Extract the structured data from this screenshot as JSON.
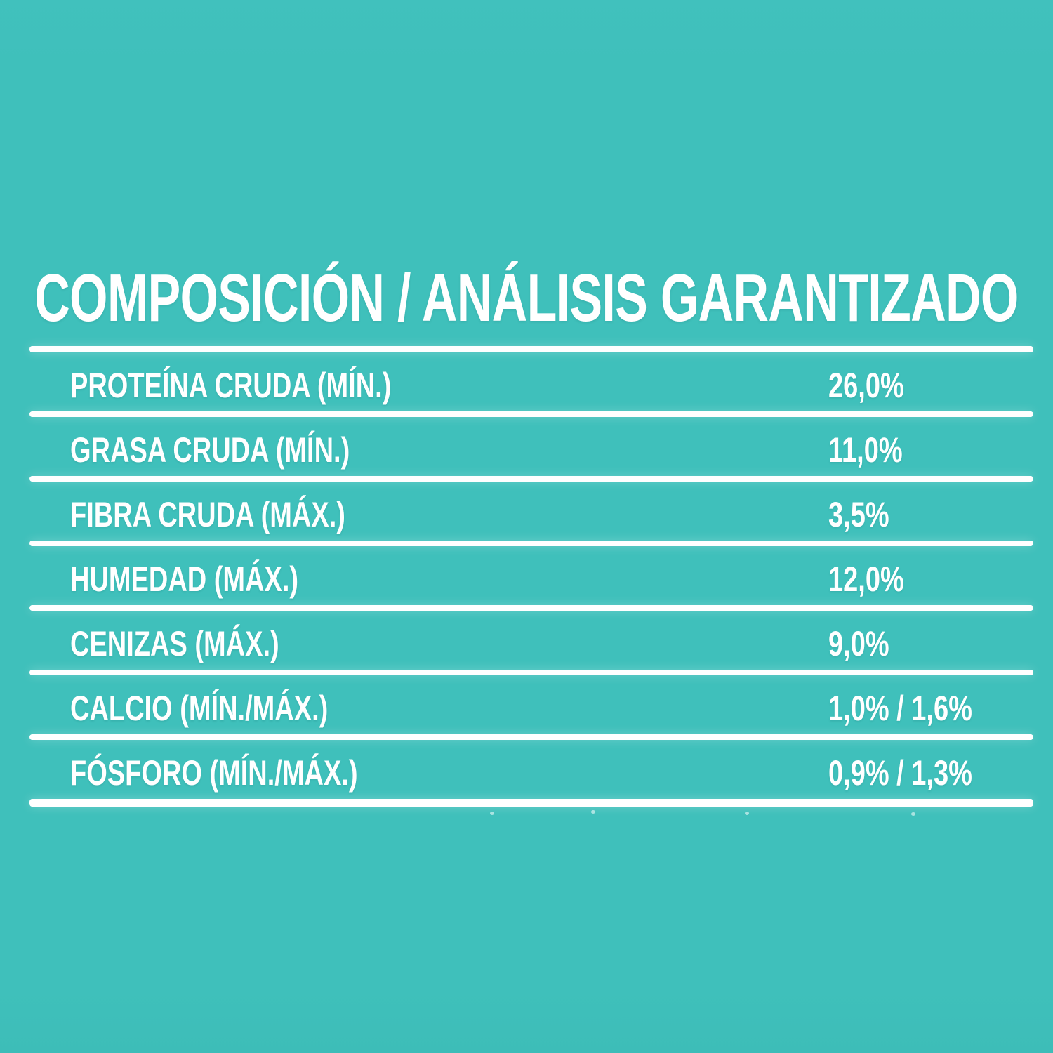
{
  "title": "COMPOSICIÓN / ANÁLISIS GARANTIZADO",
  "colors": {
    "background": "#3FC0BB",
    "text": "#FFFFFF",
    "rule": "#FFFFFF"
  },
  "table": {
    "rows": [
      {
        "label": "PROTEÍNA CRUDA (MÍN.)",
        "value": "26,0%"
      },
      {
        "label": "GRASA CRUDA (MÍN.)",
        "value": "11,0%"
      },
      {
        "label": "FIBRA CRUDA (MÁX.)",
        "value": "3,5%"
      },
      {
        "label": "HUMEDAD (MÁX.)",
        "value": "12,0%"
      },
      {
        "label": "CENIZAS (MÁX.)",
        "value": "9,0%"
      },
      {
        "label": "CALCIO (MÍN./MÁX.)",
        "value": "1,0% / 1,6%"
      },
      {
        "label": "FÓSFORO (MÍN./MÁX.)",
        "value": "0,9% / 1,3%"
      }
    ]
  }
}
